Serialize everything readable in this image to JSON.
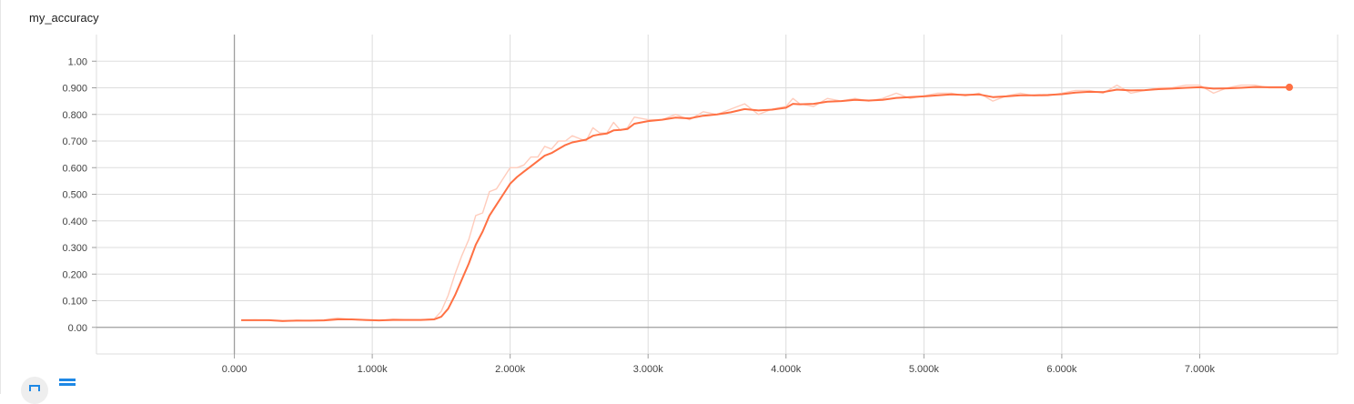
{
  "card": {
    "title": "my_accuracy"
  },
  "chart_data": {
    "type": "line",
    "title": "my_accuracy",
    "xlabel": "",
    "ylabel": "",
    "xlim": [
      -1000,
      8000
    ],
    "ylim": [
      -0.1,
      1.1
    ],
    "x_ticks": [
      0,
      1000,
      2000,
      3000,
      4000,
      5000,
      6000,
      7000
    ],
    "x_tick_labels": [
      "0.000",
      "1.000k",
      "2.000k",
      "3.000k",
      "4.000k",
      "5.000k",
      "6.000k",
      "7.000k"
    ],
    "y_ticks": [
      0,
      0.1,
      0.2,
      0.3,
      0.4,
      0.5,
      0.6,
      0.7,
      0.8,
      0.9,
      1.0
    ],
    "y_tick_labels": [
      "0.00",
      "0.100",
      "0.200",
      "0.300",
      "0.400",
      "0.500",
      "0.600",
      "0.700",
      "0.800",
      "0.900",
      "1.00"
    ],
    "grid": true,
    "colors": {
      "smoothed": "#ff7043",
      "raw": "#ffccbc",
      "grid": "#dddddd",
      "axis": "#9e9e9e"
    },
    "series": [
      {
        "role": "raw",
        "x": [
          50,
          150,
          250,
          350,
          450,
          550,
          650,
          750,
          850,
          950,
          1050,
          1150,
          1250,
          1350,
          1450,
          1500,
          1550,
          1600,
          1650,
          1700,
          1750,
          1800,
          1850,
          1900,
          1950,
          2000,
          2050,
          2100,
          2150,
          2200,
          2250,
          2300,
          2350,
          2400,
          2450,
          2500,
          2550,
          2600,
          2650,
          2700,
          2750,
          2800,
          2850,
          2900,
          3000,
          3100,
          3200,
          3300,
          3400,
          3500,
          3600,
          3700,
          3800,
          3900,
          4000,
          4050,
          4100,
          4200,
          4300,
          4400,
          4500,
          4600,
          4700,
          4800,
          4900,
          5000,
          5100,
          5200,
          5300,
          5400,
          5500,
          5600,
          5700,
          5800,
          5900,
          6000,
          6100,
          6200,
          6300,
          6400,
          6500,
          6600,
          6700,
          6800,
          6900,
          7000,
          7100,
          7200,
          7300,
          7400,
          7500,
          7600,
          7650
        ],
        "y": [
          0.027,
          0.028,
          0.026,
          0.022,
          0.027,
          0.025,
          0.028,
          0.035,
          0.03,
          0.026,
          0.025,
          0.031,
          0.029,
          0.028,
          0.032,
          0.06,
          0.12,
          0.2,
          0.27,
          0.33,
          0.42,
          0.43,
          0.51,
          0.52,
          0.56,
          0.6,
          0.6,
          0.61,
          0.64,
          0.64,
          0.68,
          0.67,
          0.7,
          0.7,
          0.72,
          0.71,
          0.7,
          0.75,
          0.73,
          0.73,
          0.77,
          0.74,
          0.75,
          0.79,
          0.78,
          0.78,
          0.8,
          0.78,
          0.81,
          0.8,
          0.82,
          0.84,
          0.8,
          0.82,
          0.83,
          0.86,
          0.84,
          0.83,
          0.86,
          0.85,
          0.86,
          0.85,
          0.86,
          0.88,
          0.86,
          0.87,
          0.88,
          0.88,
          0.87,
          0.88,
          0.85,
          0.87,
          0.88,
          0.87,
          0.87,
          0.88,
          0.89,
          0.89,
          0.88,
          0.91,
          0.88,
          0.89,
          0.9,
          0.9,
          0.91,
          0.91,
          0.88,
          0.9,
          0.91,
          0.91,
          0.9,
          0.9,
          0.9
        ]
      },
      {
        "role": "smoothed",
        "x": [
          50,
          150,
          250,
          350,
          450,
          550,
          650,
          750,
          850,
          950,
          1050,
          1150,
          1250,
          1350,
          1450,
          1500,
          1550,
          1600,
          1650,
          1700,
          1750,
          1800,
          1850,
          1900,
          1950,
          2000,
          2050,
          2100,
          2150,
          2200,
          2250,
          2300,
          2350,
          2400,
          2450,
          2500,
          2550,
          2600,
          2650,
          2700,
          2750,
          2800,
          2850,
          2900,
          3000,
          3100,
          3200,
          3300,
          3400,
          3500,
          3600,
          3700,
          3800,
          3900,
          4000,
          4050,
          4100,
          4200,
          4300,
          4400,
          4500,
          4600,
          4700,
          4800,
          4900,
          5000,
          5100,
          5200,
          5300,
          5400,
          5500,
          5600,
          5700,
          5800,
          5900,
          6000,
          6100,
          6200,
          6300,
          6400,
          6500,
          6600,
          6700,
          6800,
          6900,
          7000,
          7100,
          7200,
          7300,
          7400,
          7500,
          7600,
          7650
        ],
        "y": [
          0.027,
          0.027,
          0.027,
          0.024,
          0.025,
          0.025,
          0.026,
          0.03,
          0.03,
          0.028,
          0.026,
          0.028,
          0.028,
          0.028,
          0.03,
          0.04,
          0.07,
          0.12,
          0.18,
          0.24,
          0.31,
          0.36,
          0.42,
          0.46,
          0.5,
          0.54,
          0.565,
          0.585,
          0.605,
          0.625,
          0.645,
          0.655,
          0.67,
          0.685,
          0.695,
          0.7,
          0.705,
          0.72,
          0.725,
          0.728,
          0.74,
          0.742,
          0.745,
          0.765,
          0.775,
          0.78,
          0.788,
          0.785,
          0.795,
          0.8,
          0.808,
          0.82,
          0.815,
          0.818,
          0.825,
          0.84,
          0.838,
          0.84,
          0.848,
          0.85,
          0.855,
          0.852,
          0.855,
          0.862,
          0.865,
          0.868,
          0.872,
          0.875,
          0.873,
          0.875,
          0.865,
          0.868,
          0.872,
          0.872,
          0.873,
          0.876,
          0.882,
          0.885,
          0.884,
          0.893,
          0.89,
          0.891,
          0.895,
          0.897,
          0.9,
          0.902,
          0.897,
          0.898,
          0.9,
          0.903,
          0.902,
          0.902,
          0.902
        ]
      }
    ]
  },
  "footer": {
    "expand_icon": "fullscreen-icon",
    "data_icon": "list-lines-icon"
  }
}
